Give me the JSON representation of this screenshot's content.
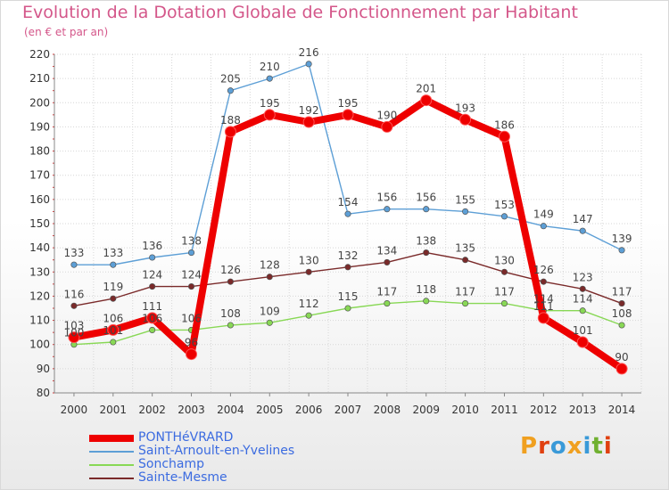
{
  "title": "Evolution de la Dotation Globale de Fonctionnement par Habitant",
  "subtitle": "(en € et par an)",
  "logo": {
    "text": "Proxiti",
    "colors": [
      "#f0a020",
      "#e04010",
      "#3a9ad8",
      "#f0a020",
      "#3a9ad8",
      "#70b030",
      "#e04010"
    ]
  },
  "chart_data": {
    "type": "line",
    "title": "Evolution de la Dotation Globale de Fonctionnement par Habitant",
    "subtitle": "(en € et par an)",
    "xlabel": "",
    "ylabel": "",
    "ylim": [
      80,
      220
    ],
    "yticks": [
      80,
      90,
      100,
      110,
      120,
      130,
      140,
      150,
      160,
      170,
      180,
      190,
      200,
      210,
      220
    ],
    "categories": [
      "2000",
      "2001",
      "2002",
      "2003",
      "2004",
      "2005",
      "2006",
      "2007",
      "2008",
      "2009",
      "2010",
      "2011",
      "2012",
      "2013",
      "2014"
    ],
    "grid": true,
    "legend_position": "bottom-left",
    "series": [
      {
        "name": "Sainte-Mesme",
        "color": "#7a2a2a",
        "values": [
          116,
          119,
          124,
          124,
          126,
          128,
          130,
          132,
          134,
          138,
          135,
          130,
          126,
          123,
          117
        ]
      },
      {
        "name": "Sonchamp",
        "color": "#88d855",
        "values": [
          100,
          101,
          106,
          106,
          108,
          109,
          112,
          115,
          117,
          118,
          117,
          117,
          114,
          114,
          108
        ]
      },
      {
        "name": "Saint-Arnoult-en-Yvelines",
        "color": "#5d9fd6",
        "values": [
          133,
          133,
          136,
          138,
          205,
          210,
          216,
          154,
          156,
          156,
          155,
          153,
          149,
          147,
          139
        ]
      },
      {
        "name": "PONTHéVRARD",
        "color": "#ee0000",
        "values": [
          103,
          106,
          111,
          96,
          188,
          195,
          192,
          195,
          190,
          201,
          193,
          186,
          111,
          101,
          90
        ]
      }
    ],
    "legend_order": [
      "PONTHéVRARD",
      "Saint-Arnoult-en-Yvelines",
      "Sonchamp",
      "Sainte-Mesme"
    ]
  }
}
